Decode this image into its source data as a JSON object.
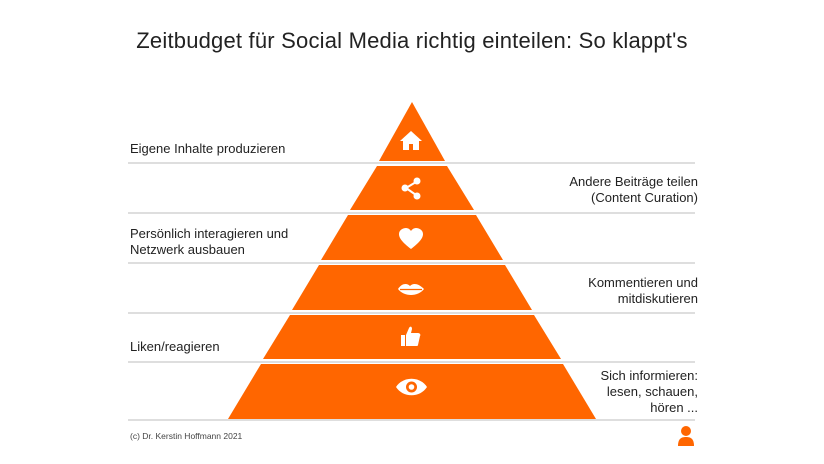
{
  "title": "Zeitbudget für Social Media richtig einteilen: So klappt's",
  "colors": {
    "accent": "#ff6600",
    "line": "#bdbdbd",
    "icon": "#ffffff"
  },
  "levels": [
    {
      "icon": "house-icon",
      "side": "left",
      "lines": [
        "Eigene Inhalte produzieren"
      ]
    },
    {
      "icon": "share-icon",
      "side": "right",
      "lines": [
        "Andere Beiträge teilen",
        "(Content Curation)"
      ]
    },
    {
      "icon": "heart-icon",
      "side": "left",
      "lines": [
        "Persönlich interagieren und",
        "Netzwerk ausbauen"
      ]
    },
    {
      "icon": "lips-icon",
      "side": "right",
      "lines": [
        "Kommentieren und",
        "mitdiskutieren"
      ]
    },
    {
      "icon": "thumbs-up-icon",
      "side": "left",
      "lines": [
        "Liken/reagieren"
      ]
    },
    {
      "icon": "eye-icon",
      "side": "right",
      "lines": [
        "Sich informieren:",
        "lesen, schauen,",
        "hören ..."
      ]
    }
  ],
  "footer": "(c) Dr. Kerstin Hoffmann 2021",
  "logo": "person-icon"
}
